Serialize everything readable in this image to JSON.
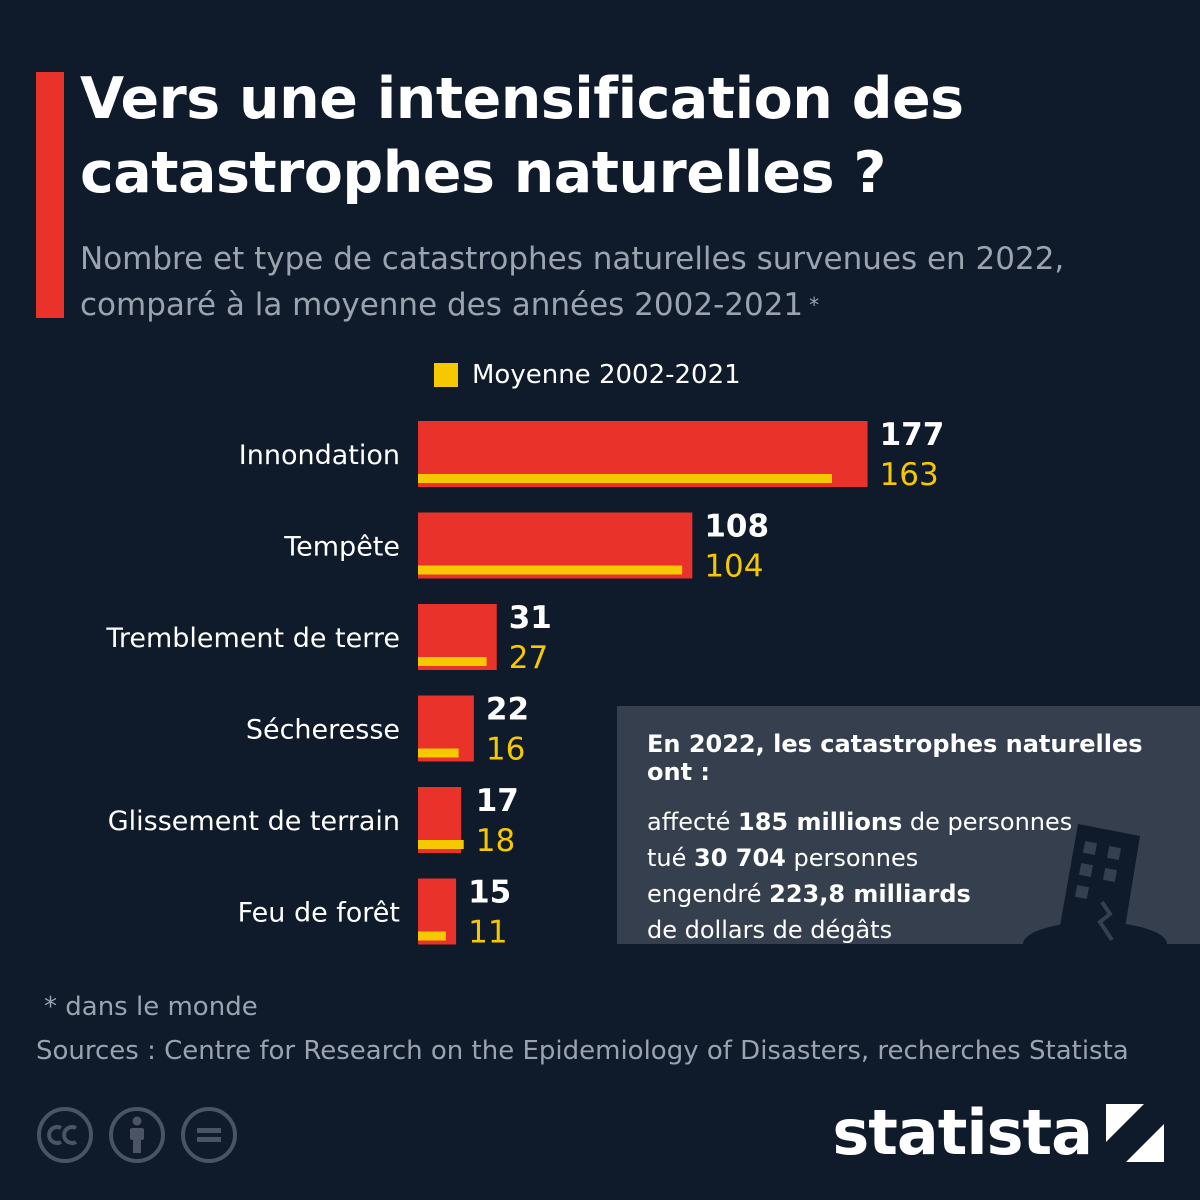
{
  "header": {
    "title": "Vers une intensification des catastrophes naturelles ?",
    "subtitle": "Nombre et type de catastrophes naturelles survenues en 2022, comparé à la moyenne des années 2002-2021",
    "subtitle_marker": "*"
  },
  "legend": {
    "label": "Moyenne 2002-2021"
  },
  "chart_data": {
    "type": "bar",
    "orientation": "horizontal",
    "categories": [
      "Innondation",
      "Tempête",
      "Tremblement de terre",
      "Sécheresse",
      "Glissement de terrain",
      "Feu de forêt"
    ],
    "series": [
      {
        "values": [
          177,
          108,
          31,
          22,
          17,
          15
        ],
        "color": "#e8322a"
      },
      {
        "name": "Moyenne 2002-2021",
        "values": [
          163,
          104,
          27,
          16,
          18,
          11
        ],
        "color": "#f5c800"
      }
    ]
  },
  "info_box": {
    "heading": "En 2022, les catastrophes naturelles ont :",
    "line1": {
      "pre": "affecté ",
      "bold": "185 millions",
      "post": " de personnes"
    },
    "line2": {
      "pre": "tué ",
      "bold": "30 704",
      "post": " personnes"
    },
    "line3": {
      "pre": "engendré ",
      "bold": "223,8 milliards",
      "post": ""
    },
    "line4": "de dollars de dégâts",
    "icon": "collapsed-building-icon"
  },
  "footer": {
    "footnote": "* dans le monde",
    "source": "Sources : Centre for Research on the Epidemiology of Disasters, recherches Statista",
    "license_icons": [
      "cc-icon",
      "attribution-icon",
      "no-derivatives-icon"
    ],
    "brand": "statista"
  },
  "colors": {
    "background": "#0f1a2b",
    "accent": "#e8322a",
    "highlight": "#f5c800",
    "info_bg": "#353f4e",
    "muted": "#9aa3ae"
  }
}
